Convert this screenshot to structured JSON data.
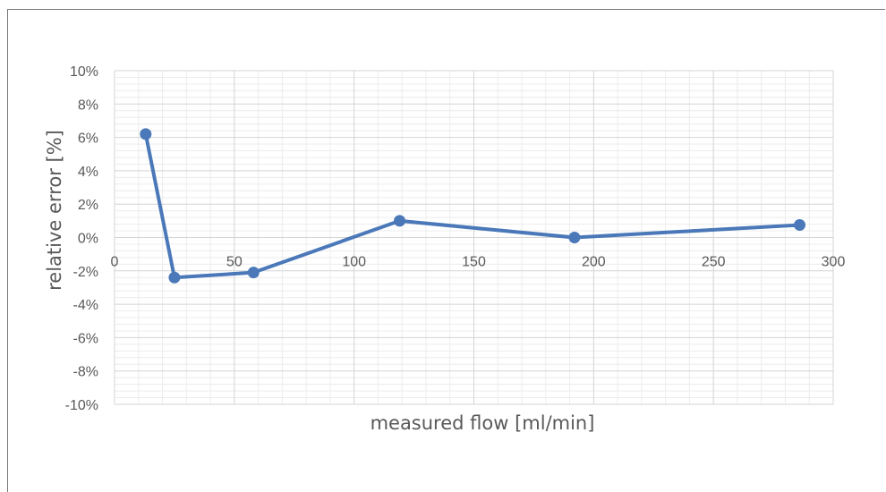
{
  "chart_data": {
    "type": "line",
    "xlabel": "measured flow [ml/min]",
    "ylabel": "relative error [%]",
    "xlim": [
      0,
      300
    ],
    "ylim": [
      -10,
      10
    ],
    "x_ticks": [
      0,
      50,
      100,
      150,
      200,
      250,
      300
    ],
    "y_ticks": [
      10,
      8,
      6,
      4,
      2,
      0,
      -2,
      -4,
      -6,
      -8,
      -10
    ],
    "x_tick_labels": [
      "0",
      "50",
      "100",
      "150",
      "200",
      "250",
      "300"
    ],
    "y_tick_labels": [
      "10%",
      "8%",
      "6%",
      "4%",
      "2%",
      "0%",
      "-2%",
      "-4%",
      "-6%",
      "-8%",
      "-10%"
    ],
    "grid": true,
    "series": [
      {
        "color": "#4a78b8",
        "points": [
          {
            "x": 13,
            "y": 6.2
          },
          {
            "x": 25,
            "y": -2.4
          },
          {
            "x": 58,
            "y": -2.1
          },
          {
            "x": 119,
            "y": 1.0
          },
          {
            "x": 192,
            "y": 0.0
          },
          {
            "x": 286,
            "y": 0.75
          }
        ]
      }
    ]
  }
}
